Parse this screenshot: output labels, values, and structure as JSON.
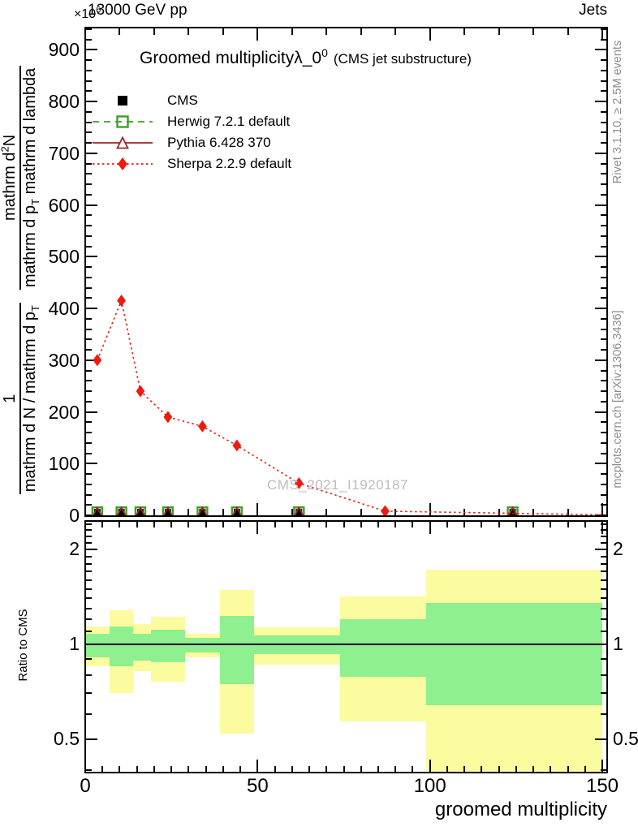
{
  "header": {
    "scale_base": "×10",
    "scale_exp": "6",
    "beam_title": "13000 GeV pp",
    "right_title": "Jets"
  },
  "plot_title": {
    "main": "Groomed multiplicity",
    "lambda": "λ_0",
    "lambda_exp": "0",
    "suffix": "(CMS jet substructure)"
  },
  "ylabel": {
    "num1": "1",
    "den1": "mathrm d N / mathrm d p",
    "den1_sub": "T",
    "num2_a": "mathrm d",
    "num2_sup": "2",
    "num2_b": "N",
    "den2_a": "mathrm d p",
    "den2_sub": "T",
    "den2_b": "mathrm d lambda"
  },
  "ratio_ylabel": "Ratio to CMS",
  "xlabel": "groomed multiplicity",
  "watermark": "CMS_2021_I1920187",
  "side_notes": {
    "top": "Rivet 3.1.10, ≥ 2.5M events",
    "bottom": "mcplots.cern.ch [arXiv:1306.3436]"
  },
  "legend": [
    {
      "label": "CMS",
      "color": "#000000",
      "marker": "filled-square",
      "line": "none"
    },
    {
      "label": "Herwig 7.2.1 default",
      "color": "#3d9f27",
      "marker": "open-square",
      "line": "dashed"
    },
    {
      "label": "Pythia 6.428 370",
      "color": "#a02129",
      "marker": "open-triangle",
      "line": "solid"
    },
    {
      "label": "Sherpa 2.2.9 default",
      "color": "#ef1a10",
      "marker": "filled-diamond",
      "line": "dotted"
    }
  ],
  "axes": {
    "x": {
      "majors": [
        0,
        50,
        100,
        150
      ],
      "main_minor_step": 10,
      "ratio_minor_step": 5,
      "min": 0,
      "max": 151.4
    },
    "main_y": {
      "majors": [
        0,
        100,
        200,
        300,
        400,
        500,
        600,
        700,
        800,
        900
      ],
      "minor_step": 20,
      "min": 0,
      "max": 944
    },
    "ratio_y": {
      "majors": [
        0.5,
        1,
        2
      ],
      "minors": [
        0.4,
        0.6,
        0.7,
        0.8,
        0.9,
        1.1,
        1.2,
        1.3,
        1.4,
        1.5,
        1.6,
        1.7,
        1.8,
        1.9,
        2.1,
        2.2,
        2.3,
        2.4
      ],
      "min": 0.394,
      "max": 2.45
    }
  },
  "chart_data": {
    "type": "line",
    "title": "Groomed multiplicity λ_0^0 (CMS jet substructure)",
    "xlabel": "groomed multiplicity",
    "ylabel": "1/(dN/dp_T) d^2N/(dp_T dlambda)",
    "y_scale_factor": "1e6",
    "xlim": [
      0,
      151.4
    ],
    "ylim": [
      0,
      944
    ],
    "legend_position": "top-left",
    "grid": false,
    "series": [
      {
        "name": "CMS",
        "marker": "filled-square",
        "color": "#000000",
        "line": "none",
        "x": [
          3.5,
          10.5,
          16,
          24,
          34,
          44,
          62,
          124
        ],
        "y": [
          6,
          6,
          6,
          6,
          6,
          6,
          6,
          6
        ]
      },
      {
        "name": "Herwig 7.2.1 default",
        "marker": "open-square",
        "color": "#3d9f27",
        "line": "none",
        "x": [
          3.5,
          10.5,
          16,
          24,
          34,
          44,
          62,
          124
        ],
        "y": [
          6,
          6,
          6,
          6,
          6,
          6,
          6,
          6
        ]
      },
      {
        "name": "Pythia 6.428 370",
        "marker": "open-triangle",
        "color": "#a02129",
        "line": "none",
        "x": [
          3.5,
          10.5,
          16,
          24,
          34,
          44,
          62,
          124
        ],
        "y": [
          6,
          6,
          6,
          6,
          6,
          6,
          6,
          6
        ]
      },
      {
        "name": "Sherpa 2.2.9 default",
        "marker": "filled-diamond",
        "color": "#ef1a10",
        "line": "dotted",
        "x": [
          3.5,
          10.5,
          16,
          24,
          34,
          44,
          62,
          87,
          150
        ],
        "y": [
          300,
          415,
          240,
          190,
          172,
          135,
          62,
          8,
          1
        ],
        "marker_on_last": false
      }
    ],
    "ratio": {
      "label": "Ratio to CMS",
      "reference": 1,
      "scale": "log",
      "band_colors": {
        "yellow": "#fbfb9f",
        "green": "#8ff08f"
      },
      "bands": [
        {
          "x0": 0,
          "x1": 7,
          "yellow": [
            0.85,
            1.14
          ],
          "green": [
            0.91,
            1.08
          ]
        },
        {
          "x0": 7,
          "x1": 14,
          "yellow": [
            0.7,
            1.28
          ],
          "green": [
            0.85,
            1.14
          ]
        },
        {
          "x0": 14,
          "x1": 19,
          "yellow": [
            0.82,
            1.16
          ],
          "green": [
            0.89,
            1.08
          ]
        },
        {
          "x0": 19,
          "x1": 29,
          "yellow": [
            0.76,
            1.22
          ],
          "green": [
            0.88,
            1.11
          ]
        },
        {
          "x0": 29,
          "x1": 39,
          "yellow": [
            0.91,
            1.08
          ],
          "green": [
            0.94,
            1.05
          ]
        },
        {
          "x0": 39,
          "x1": 49,
          "yellow": [
            0.52,
            1.49
          ],
          "green": [
            0.75,
            1.23
          ]
        },
        {
          "x0": 49,
          "x1": 74,
          "yellow": [
            0.86,
            1.13
          ],
          "green": [
            0.93,
            1.07
          ]
        },
        {
          "x0": 74,
          "x1": 99,
          "yellow": [
            0.57,
            1.42
          ],
          "green": [
            0.79,
            1.2
          ]
        },
        {
          "x0": 99,
          "x1": 150,
          "yellow": [
            0.36,
            1.72
          ],
          "green": [
            0.64,
            1.35
          ]
        }
      ]
    }
  }
}
